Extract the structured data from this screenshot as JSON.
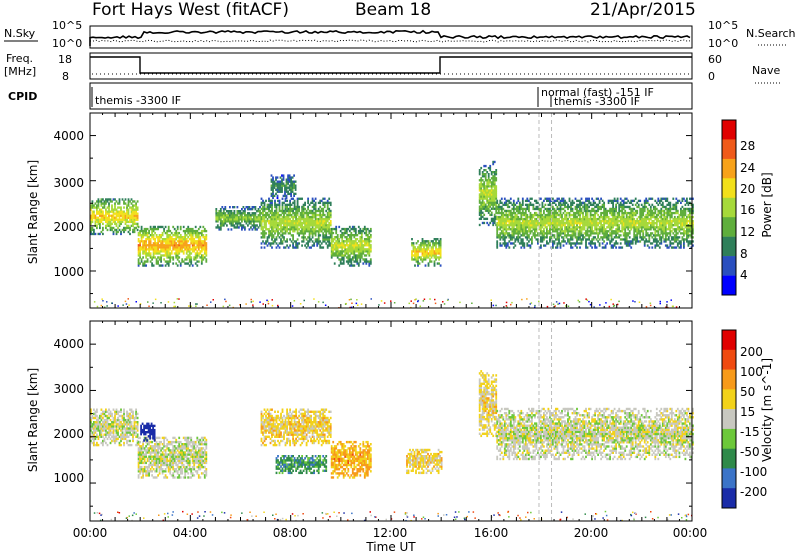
{
  "header": {
    "station": "Fort Hays West (fitACF)",
    "beam": "Beam 18",
    "date": "21/Apr/2015"
  },
  "panels": {
    "nsky": {
      "label": "N.Sky",
      "right_label": "N.Search",
      "left_ticks": [
        "10^5",
        "10^0"
      ],
      "right_ticks": [
        "10^5",
        "10^0"
      ]
    },
    "freq": {
      "label_line1": "Freq.",
      "label_line2": "[MHz]",
      "right_label": "Nave",
      "left_ticks": [
        "18",
        "8"
      ],
      "right_ticks": [
        "60",
        "0"
      ]
    },
    "cpid": {
      "label": "CPID",
      "segments": [
        "themis -3300 IF",
        "normal (fast) -151 IF",
        "themis -3300 IF"
      ]
    }
  },
  "power_panel": {
    "ylabel": "Slant Range [km]",
    "yticks": [
      "4000",
      "3000",
      "2000",
      "1000"
    ],
    "colorbar_label": "Power [dB]",
    "colorbar_ticks": [
      "28",
      "24",
      "20",
      "16",
      "12",
      "8",
      "4"
    ],
    "colors": [
      "#0000ff",
      "#2a4fbf",
      "#2f7f5a",
      "#5fae3c",
      "#a6d93a",
      "#f2e01a",
      "#f7a21a",
      "#ef5a1a",
      "#e00000"
    ]
  },
  "velocity_panel": {
    "ylabel": "Slant Range [km]",
    "yticks": [
      "4000",
      "3000",
      "2000",
      "1000"
    ],
    "colorbar_label": "Velocity [m s^-1]",
    "colorbar_ticks": [
      "200",
      "100",
      "50",
      "15",
      "-15",
      "-50",
      "-100",
      "-200"
    ],
    "colors": [
      "#1a2ca8",
      "#3b74c8",
      "#2f8a4a",
      "#6cc83a",
      "#c8c8c0",
      "#f2d21a",
      "#f79a1a",
      "#ef4a10",
      "#e00000"
    ]
  },
  "xaxis": {
    "label": "Time UT",
    "ticks": [
      "00:00",
      "04:00",
      "08:00",
      "12:00",
      "16:00",
      "20:00",
      "00:00"
    ]
  },
  "chart_data": [
    {
      "type": "heatmap",
      "name": "power",
      "x_range_hours": [
        0,
        24
      ],
      "y_range_km": [
        180,
        4500
      ],
      "z_unit": "dB",
      "z_range": [
        0,
        30
      ],
      "blobs": [
        {
          "t0": 0.0,
          "t1": 1.9,
          "r0": 1800,
          "r1": 2600,
          "z": 18
        },
        {
          "t0": 1.9,
          "t1": 4.6,
          "r0": 1100,
          "r1": 2000,
          "z": 20
        },
        {
          "t0": 5.0,
          "t1": 6.8,
          "r0": 1900,
          "r1": 2400,
          "z": 12
        },
        {
          "t0": 6.8,
          "t1": 9.6,
          "r0": 1500,
          "r1": 2600,
          "z": 14
        },
        {
          "t0": 7.2,
          "t1": 8.2,
          "r0": 2600,
          "r1": 3100,
          "z": 8
        },
        {
          "t0": 9.6,
          "t1": 11.2,
          "r0": 1100,
          "r1": 2000,
          "z": 15
        },
        {
          "t0": 12.8,
          "t1": 14.0,
          "r0": 1100,
          "r1": 1700,
          "z": 18
        },
        {
          "t0": 15.5,
          "t1": 16.2,
          "r0": 2000,
          "r1": 3400,
          "z": 14
        },
        {
          "t0": 16.2,
          "t1": 24.0,
          "r0": 1500,
          "r1": 2600,
          "z": 14
        }
      ]
    },
    {
      "type": "heatmap",
      "name": "velocity",
      "x_range_hours": [
        0,
        24
      ],
      "y_range_km": [
        180,
        4500
      ],
      "z_unit": "m s^-1",
      "z_range": [
        -200,
        200
      ],
      "blobs": [
        {
          "t0": 0.0,
          "t1": 1.9,
          "r0": 1800,
          "r1": 2600,
          "z": 0
        },
        {
          "t0": 1.9,
          "t1": 4.6,
          "r0": 1100,
          "r1": 2000,
          "z": 0
        },
        {
          "t0": 2.0,
          "t1": 2.6,
          "r0": 1900,
          "r1": 2300,
          "z": -200
        },
        {
          "t0": 6.8,
          "t1": 9.6,
          "r0": 1800,
          "r1": 2600,
          "z": 40
        },
        {
          "t0": 7.4,
          "t1": 9.4,
          "r0": 1200,
          "r1": 1600,
          "z": -90
        },
        {
          "t0": 9.6,
          "t1": 11.2,
          "r0": 1100,
          "r1": 1900,
          "z": 70
        },
        {
          "t0": 12.6,
          "t1": 14.0,
          "r0": 1200,
          "r1": 1700,
          "z": 40
        },
        {
          "t0": 15.5,
          "t1": 16.2,
          "r0": 2000,
          "r1": 3400,
          "z": 30
        },
        {
          "t0": 16.2,
          "t1": 24.0,
          "r0": 1500,
          "r1": 2600,
          "z": 0
        }
      ]
    }
  ]
}
